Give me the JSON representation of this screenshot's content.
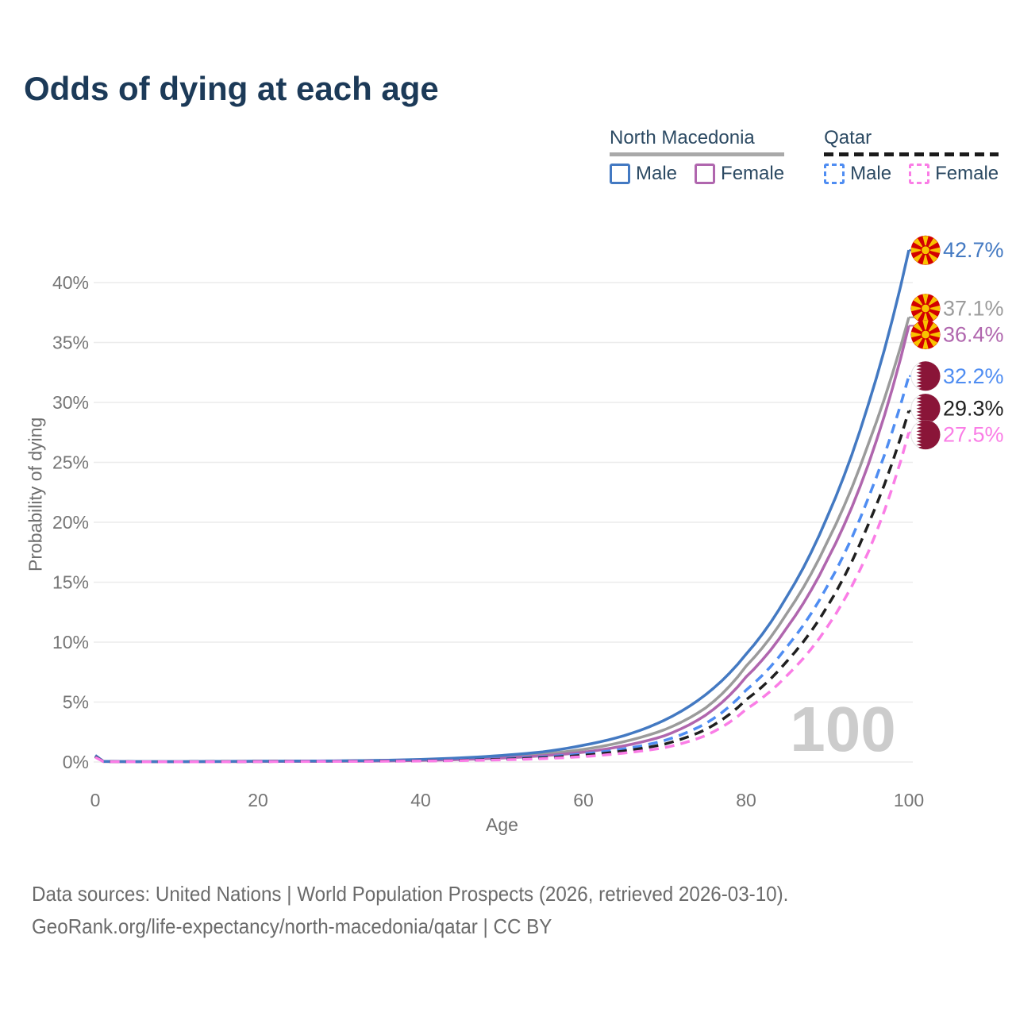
{
  "title": "Odds of dying at each age",
  "legend": {
    "groups": [
      {
        "label": "North Macedonia",
        "underline_color": "#a9a9a9",
        "underline_dashed": false,
        "items": [
          {
            "label": "Male",
            "color": "#4379c2",
            "dashed": false
          },
          {
            "label": "Female",
            "color": "#b066ae",
            "dashed": false
          }
        ]
      },
      {
        "label": "Qatar",
        "underline_color": "#1a1a1a",
        "underline_dashed": true,
        "items": [
          {
            "label": "Male",
            "color": "#4f8df2",
            "dashed": true
          },
          {
            "label": "Female",
            "color": "#fa7de6",
            "dashed": true
          }
        ]
      }
    ]
  },
  "watermark": "100",
  "footer": {
    "line1": "Data sources: United Nations | World Population Prospects (2026, retrieved 2026-03-10).",
    "line2": "GeoRank.org/life-expectancy/north-macedonia/qatar | CC BY"
  },
  "chart_data": {
    "type": "line",
    "title": "Odds of dying at each age",
    "xlabel": "Age",
    "ylabel": "Probability of dying",
    "xlim": [
      0,
      100
    ],
    "ylim": [
      0,
      43.5
    ],
    "x_ticks": [
      0,
      20,
      40,
      60,
      80,
      100
    ],
    "y_tick_labels": [
      "0%",
      "5%",
      "10%",
      "15%",
      "20%",
      "25%",
      "30%",
      "35%",
      "40%"
    ],
    "grid": true,
    "legend_position": "top-right",
    "ages": [
      0,
      1,
      5,
      10,
      15,
      20,
      25,
      30,
      35,
      40,
      45,
      50,
      55,
      60,
      65,
      70,
      75,
      80,
      85,
      90,
      95,
      100
    ],
    "unit": "percent",
    "series": [
      {
        "id": "nm-both",
        "name": "North Macedonia",
        "flag": "north-macedonia",
        "color": "#9b9b9b",
        "dashed": false,
        "end_label": "37.1%",
        "values": [
          0.5,
          0.04,
          0.03,
          0.03,
          0.04,
          0.05,
          0.06,
          0.08,
          0.11,
          0.17,
          0.27,
          0.43,
          0.67,
          1.05,
          1.7,
          2.7,
          4.5,
          8.0,
          12.4,
          18.4,
          26.5,
          37.1
        ]
      },
      {
        "id": "nm-female",
        "name": "North Macedonia Female",
        "flag": "north-macedonia",
        "color": "#b066ae",
        "dashed": false,
        "end_label": "36.4%",
        "values": [
          0.45,
          0.04,
          0.02,
          0.02,
          0.03,
          0.04,
          0.05,
          0.06,
          0.08,
          0.13,
          0.21,
          0.33,
          0.52,
          0.82,
          1.35,
          2.2,
          3.9,
          7.1,
          11.2,
          16.9,
          24.8,
          36.4
        ]
      },
      {
        "id": "nm-male",
        "name": "North Macedonia Male",
        "flag": "north-macedonia",
        "color": "#4379c2",
        "dashed": false,
        "end_label": "42.7%",
        "values": [
          0.55,
          0.05,
          0.03,
          0.03,
          0.05,
          0.07,
          0.08,
          0.1,
          0.14,
          0.22,
          0.35,
          0.55,
          0.85,
          1.4,
          2.2,
          3.5,
          5.6,
          9.0,
          13.8,
          20.5,
          29.8,
          42.7
        ]
      },
      {
        "id": "qa-male",
        "name": "Qatar Male",
        "flag": "qatar",
        "color": "#4f8df2",
        "dashed": true,
        "end_label": "32.2%",
        "values": [
          0.5,
          0.04,
          0.02,
          0.02,
          0.03,
          0.05,
          0.06,
          0.07,
          0.09,
          0.12,
          0.18,
          0.27,
          0.42,
          0.68,
          1.1,
          1.8,
          3.2,
          6.0,
          9.6,
          14.7,
          22.0,
          32.2
        ]
      },
      {
        "id": "qa-both",
        "name": "Qatar",
        "flag": "qatar",
        "color": "#1f1f1f",
        "dashed": true,
        "end_label": "29.3%",
        "values": [
          0.45,
          0.04,
          0.02,
          0.02,
          0.03,
          0.04,
          0.05,
          0.06,
          0.08,
          0.1,
          0.15,
          0.23,
          0.35,
          0.56,
          0.92,
          1.5,
          2.7,
          5.2,
          8.4,
          13.0,
          19.8,
          29.3
        ]
      },
      {
        "id": "qa-female",
        "name": "Qatar Female",
        "flag": "qatar",
        "color": "#fa7de6",
        "dashed": true,
        "end_label": "27.5%",
        "values": [
          0.4,
          0.03,
          0.02,
          0.02,
          0.02,
          0.03,
          0.04,
          0.05,
          0.06,
          0.08,
          0.12,
          0.18,
          0.28,
          0.45,
          0.75,
          1.2,
          2.2,
          4.4,
          7.2,
          11.3,
          17.5,
          27.5
        ]
      }
    ],
    "colors": {
      "grid": "#ececec",
      "tick_text": "#757575",
      "watermark": "#cccccc",
      "nm_flag_red": "#d20000",
      "nm_flag_yellow": "#f8c300",
      "qatar_maroon": "#8a1538"
    }
  }
}
